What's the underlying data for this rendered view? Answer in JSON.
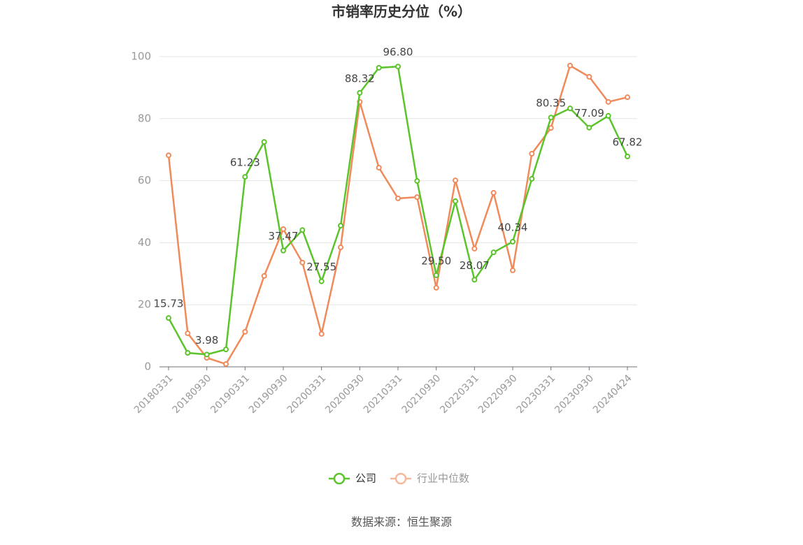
{
  "chart_data": {
    "type": "line",
    "title": "市销率历史分位（%）",
    "categories": [
      "20180331",
      null,
      "20180930",
      null,
      "20190331",
      null,
      "20190930",
      null,
      "20200331",
      null,
      "20200930",
      null,
      "20210331",
      null,
      "20210930",
      null,
      "20220331",
      null,
      "20220930",
      null,
      "20230331",
      null,
      "20230930",
      null,
      "20240424"
    ],
    "series": [
      {
        "name": "公司",
        "color": "#5ac42a",
        "values": [
          15.73,
          4.5,
          3.98,
          5.6,
          61.23,
          72.5,
          37.47,
          44.1,
          27.55,
          45.5,
          88.32,
          96.4,
          96.8,
          59.9,
          29.5,
          53.4,
          28.07,
          36.9,
          40.34,
          60.6,
          80.35,
          83.3,
          77.09,
          80.9,
          67.82
        ],
        "value_labels": [
          "15.73",
          null,
          "3.98",
          null,
          "61.23",
          null,
          "37.47",
          null,
          "27.55",
          null,
          "88.32",
          null,
          "96.80",
          null,
          "29.50",
          null,
          "28.07",
          null,
          "40.34",
          null,
          "80.35",
          null,
          "77.09",
          null,
          "67.82"
        ]
      },
      {
        "name": "行业中位数",
        "color": "#f08a5a",
        "values": [
          68.2,
          10.8,
          2.9,
          0.9,
          11.3,
          29.3,
          44.4,
          33.6,
          10.6,
          38.5,
          85.4,
          64.2,
          54.3,
          54.7,
          25.5,
          60.1,
          38.1,
          56.1,
          31.1,
          68.7,
          77.0,
          97.1,
          93.5,
          85.4,
          86.9
        ]
      }
    ],
    "ylim": [
      0,
      100
    ],
    "yticks": [
      0,
      20,
      40,
      60,
      80,
      100
    ],
    "grid": true,
    "source": "数据来源：恒生聚源"
  }
}
